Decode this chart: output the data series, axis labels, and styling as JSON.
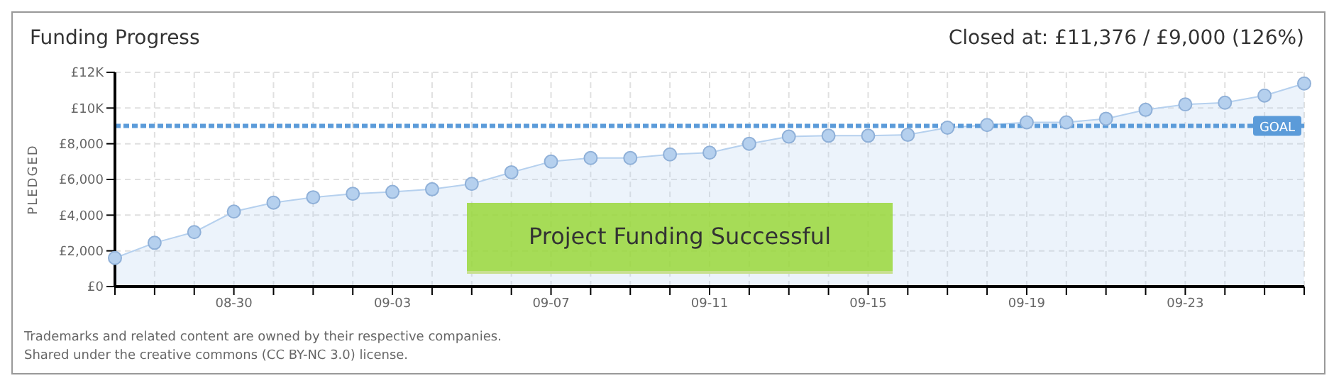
{
  "chart_data": {
    "type": "area",
    "title": "Funding Progress",
    "ylabel": "PLEDGED",
    "annotations": [
      "Closed at:  £11,376 / £9,000 (126%)",
      "Project Funding Successful",
      "Trademarks and related content are owned by their respective companies.",
      "Shared under the creative commons (CC BY-NC 3.0) license."
    ],
    "categories": [
      null,
      null,
      null,
      "08-30",
      null,
      null,
      null,
      "09-03",
      null,
      null,
      null,
      "09-07",
      null,
      null,
      null,
      "09-11",
      null,
      null,
      null,
      "09-15",
      null,
      null,
      null,
      "09-19",
      null,
      null,
      null,
      "09-23",
      null,
      null,
      null
    ],
    "series": [
      {
        "color": "#b5d0ee",
        "values": [
          1600,
          2450,
          3050,
          4200,
          4700,
          5000,
          5200,
          5300,
          5450,
          5750,
          6400,
          7000,
          7200,
          7200,
          7400,
          7500,
          8000,
          8400,
          8450,
          8450,
          8500,
          8900,
          9050,
          9200,
          9200,
          9400,
          9900,
          10200,
          10300,
          10700,
          11376
        ]
      }
    ],
    "ylim": [
      0,
      12000
    ],
    "yticks": [
      {
        "value": 0,
        "label": "£0"
      },
      {
        "value": 2000,
        "label": "£2,000"
      },
      {
        "value": 4000,
        "label": "£4,000"
      },
      {
        "value": 6000,
        "label": "£6,000"
      },
      {
        "value": 8000,
        "label": "£8,000"
      },
      {
        "value": 10000,
        "label": "£10K"
      },
      {
        "value": 12000,
        "label": "£12K"
      }
    ],
    "ref_lines": [
      {
        "axis": "y",
        "value": 9000,
        "label": "GOAL",
        "color": "#5b9bd9",
        "line_style": "dashed"
      }
    ],
    "grid": true,
    "legend": false,
    "marker": "circle"
  }
}
